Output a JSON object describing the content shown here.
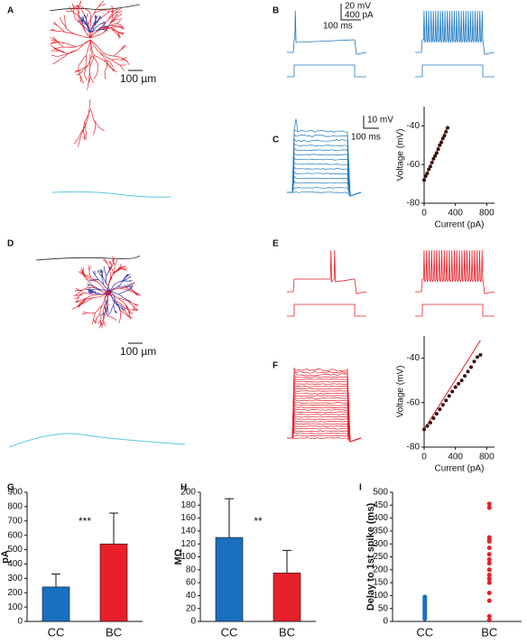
{
  "figure": {
    "panel_labels": [
      "A",
      "B",
      "D",
      "E"
    ],
    "scale_bar_labels": [
      "100 µm",
      "20 mV",
      "400 pA",
      "100 ms",
      "10 mV",
      "100 ms",
      "100 µm"
    ]
  },
  "chart_data": [
    {
      "type": "scatter",
      "panel": "C",
      "xlabel": "Current (pA)",
      "ylabel": "Voltage (mV)",
      "xlim": [
        0,
        900
      ],
      "ylim": [
        -80,
        -30
      ],
      "xticks": [
        0,
        400,
        800
      ],
      "yticks": [
        -80,
        -60,
        -40
      ],
      "series": [
        {
          "style": "line",
          "color": "#e02020",
          "x": [
            0,
            300
          ],
          "values": [
            -68,
            -40
          ]
        },
        {
          "style": "points",
          "color": "#3a1010",
          "x": [
            0,
            20,
            40,
            60,
            80,
            100,
            120,
            140,
            160,
            180,
            200,
            220,
            240,
            260,
            280,
            300
          ],
          "values": [
            -68,
            -66,
            -64.5,
            -62.5,
            -61,
            -59,
            -57,
            -55.5,
            -54,
            -52,
            -50,
            -48.5,
            -46.5,
            -45,
            -43,
            -41
          ]
        }
      ]
    },
    {
      "type": "scatter",
      "panel": "F",
      "xlabel": "Current (pA)",
      "ylabel": "Voltage (mV)",
      "xlim": [
        0,
        900
      ],
      "ylim": [
        -80,
        -30
      ],
      "xticks": [
        0,
        400,
        800
      ],
      "yticks": [
        -80,
        -60,
        -40
      ],
      "series": [
        {
          "style": "line",
          "color": "#e02020",
          "x": [
            0,
            720
          ],
          "values": [
            -72,
            -32
          ]
        },
        {
          "style": "points",
          "color": "#3a1010",
          "x": [
            0,
            40,
            80,
            120,
            160,
            200,
            240,
            280,
            320,
            360,
            400,
            440,
            480,
            520,
            560,
            600,
            640,
            680,
            720
          ],
          "values": [
            -72,
            -70.5,
            -69,
            -67,
            -65,
            -63,
            -61,
            -59,
            -57,
            -55,
            -53,
            -51.5,
            -50,
            -48,
            -46,
            -44,
            -41.5,
            -39.5,
            -38.5
          ]
        }
      ]
    },
    {
      "type": "bar",
      "panel": "G",
      "ylabel": "pA",
      "categories": [
        "CC",
        "BC"
      ],
      "values": [
        240,
        540
      ],
      "errors": [
        90,
        215
      ],
      "colors": [
        "#1a6fc0",
        "#e8202a"
      ],
      "annotation": "***",
      "ylim": [
        0,
        900
      ],
      "yticks": [
        0,
        100,
        200,
        300,
        400,
        500,
        600,
        700,
        800,
        900
      ]
    },
    {
      "type": "bar",
      "panel": "H",
      "ylabel": "MΩ",
      "categories": [
        "CC",
        "BC"
      ],
      "values": [
        130,
        75
      ],
      "errors": [
        60,
        35
      ],
      "colors": [
        "#1a6fc0",
        "#e8202a"
      ],
      "annotation": "**",
      "ylim": [
        0,
        200
      ],
      "yticks": [
        0,
        20,
        40,
        60,
        80,
        100,
        120,
        140,
        160,
        180,
        200
      ]
    },
    {
      "type": "strip",
      "panel": "I",
      "ylabel": "Delay to 1st spike (ms)",
      "categories": [
        "CC",
        "BC"
      ],
      "ylim": [
        0,
        500
      ],
      "yticks": [
        0,
        50,
        100,
        150,
        200,
        250,
        300,
        350,
        400,
        450,
        500
      ],
      "series": [
        {
          "color": "#1a6fc0",
          "values": [
            10,
            15,
            20,
            25,
            30,
            35,
            40,
            45,
            50,
            55,
            60,
            65,
            70,
            75,
            80,
            85,
            90,
            95
          ]
        },
        {
          "color": "#e8202a",
          "values": [
            455,
            440,
            325,
            315,
            310,
            285,
            260,
            240,
            225,
            200,
            180,
            165,
            150,
            110,
            80,
            20,
            5
          ]
        }
      ]
    }
  ]
}
